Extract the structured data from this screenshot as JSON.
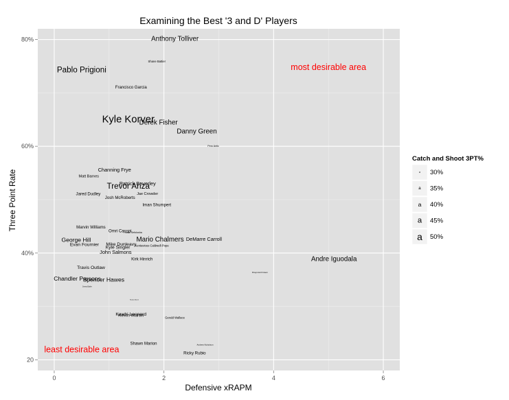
{
  "chart_data": {
    "type": "scatter",
    "title": "Examining the Best '3 and D' Players",
    "xlabel": "Defensive xRAPM",
    "ylabel": "Three Point Rate",
    "xlim": [
      -0.3,
      6.3
    ],
    "ylim": [
      18,
      82
    ],
    "x_ticks": [
      0,
      2,
      4,
      6
    ],
    "x_tick_labels": [
      "0",
      "2",
      "4",
      "6"
    ],
    "y_ticks": [
      20,
      40,
      60,
      80
    ],
    "y_tick_labels": [
      "20",
      "40%",
      "60%",
      "80%"
    ],
    "grid": true,
    "size_legend": {
      "title": "Catch and Shoot 3PT%",
      "placement": "right",
      "symbol": "a",
      "entries": [
        {
          "label": "30%",
          "value": 30
        },
        {
          "label": "35%",
          "value": 35
        },
        {
          "label": "40%",
          "value": 40
        },
        {
          "label": "45%",
          "value": 45
        },
        {
          "label": "50%",
          "value": 50
        }
      ]
    },
    "annotations": [
      {
        "text": "most desirable area",
        "x": 5.0,
        "y": 74.8,
        "color": "#ff0000"
      },
      {
        "text": "least desirable area",
        "x": 0.5,
        "y": 21.9,
        "color": "#ff0000"
      }
    ],
    "points": [
      {
        "name": "Anthony Tolliver",
        "x": 2.2,
        "y": 80.1,
        "size": 42
      },
      {
        "name": "Shane Battier",
        "x": 1.87,
        "y": 75.9,
        "size": 33
      },
      {
        "name": "Pablo Prigioni",
        "x": 0.5,
        "y": 74.3,
        "size": 45
      },
      {
        "name": "Francisco Garcia",
        "x": 1.4,
        "y": 71.0,
        "size": 36
      },
      {
        "name": "Kyle Korver",
        "x": 1.35,
        "y": 65.0,
        "size": 50
      },
      {
        "name": "Derek Fisher",
        "x": 1.9,
        "y": 64.4,
        "size": 42
      },
      {
        "name": "Danny Green",
        "x": 2.6,
        "y": 62.7,
        "size": 42
      },
      {
        "name": "Pero Antic",
        "x": 2.9,
        "y": 60.0,
        "size": 32
      },
      {
        "name": "Channing Frye",
        "x": 1.1,
        "y": 55.6,
        "size": 38
      },
      {
        "name": "Matt Barnes",
        "x": 0.63,
        "y": 54.3,
        "size": 35
      },
      {
        "name": "Patrick Beverley",
        "x": 1.52,
        "y": 53.0,
        "size": 38
      },
      {
        "name": "Trevor Ariza",
        "x": 1.35,
        "y": 52.5,
        "size": 45
      },
      {
        "name": "Jared Dudley",
        "x": 0.62,
        "y": 51.0,
        "size": 36
      },
      {
        "name": "Jae Crowder",
        "x": 1.7,
        "y": 51.0,
        "size": 35
      },
      {
        "name": "Josh McRoberts",
        "x": 1.2,
        "y": 50.3,
        "size": 36
      },
      {
        "name": "Iman Shumpert",
        "x": 1.87,
        "y": 49.0,
        "size": 36
      },
      {
        "name": "Marvin Williams",
        "x": 0.67,
        "y": 44.8,
        "size": 36
      },
      {
        "name": "Omri Casspi",
        "x": 1.2,
        "y": 44.1,
        "size": 36
      },
      {
        "name": "Thabo Sefolosha",
        "x": 1.43,
        "y": 43.8,
        "size": 32
      },
      {
        "name": "George Hill",
        "x": 0.4,
        "y": 42.5,
        "size": 40
      },
      {
        "name": "Mario Chalmers",
        "x": 1.93,
        "y": 42.5,
        "size": 42
      },
      {
        "name": "DeMarre Carroll",
        "x": 2.73,
        "y": 42.6,
        "size": 38
      },
      {
        "name": "Evan Fournier",
        "x": 0.55,
        "y": 41.5,
        "size": 37
      },
      {
        "name": "Mike Dunleavy",
        "x": 1.22,
        "y": 41.6,
        "size": 37
      },
      {
        "name": "Kentavious Caldwell-Pope",
        "x": 1.78,
        "y": 41.4,
        "size": 33
      },
      {
        "name": "Kyle Singler",
        "x": 1.16,
        "y": 41.0,
        "size": 37
      },
      {
        "name": "John Salmons",
        "x": 1.12,
        "y": 40.2,
        "size": 38
      },
      {
        "name": "Kirk Hinrich",
        "x": 1.6,
        "y": 38.8,
        "size": 36
      },
      {
        "name": "Andre Iguodala",
        "x": 5.1,
        "y": 38.8,
        "size": 42
      },
      {
        "name": "Travis Outlaw",
        "x": 0.67,
        "y": 37.2,
        "size": 37
      },
      {
        "name": "Draymond Green",
        "x": 3.75,
        "y": 36.4,
        "size": 31
      },
      {
        "name": "Chandler Parsons",
        "x": 0.42,
        "y": 35.2,
        "size": 40
      },
      {
        "name": "Spencer Hawes",
        "x": 0.9,
        "y": 35.0,
        "size": 40
      },
      {
        "name": "Jimmy Butler",
        "x": 0.6,
        "y": 33.7,
        "size": 30
      },
      {
        "name": "Nicolas Batum",
        "x": 1.46,
        "y": 31.2,
        "size": 29
      },
      {
        "name": "Kawhi Leonard",
        "x": 1.4,
        "y": 28.5,
        "size": 37
      },
      {
        "name": "Kevin Martin",
        "x": 1.4,
        "y": 28.3,
        "size": 37
      },
      {
        "name": "Gerald Wallace",
        "x": 2.2,
        "y": 27.9,
        "size": 33
      },
      {
        "name": "Shawn Marion",
        "x": 1.63,
        "y": 23.0,
        "size": 36
      },
      {
        "name": "Andrew Nicholson",
        "x": 2.75,
        "y": 22.8,
        "size": 31
      },
      {
        "name": "Ricky Rubio",
        "x": 2.56,
        "y": 21.2,
        "size": 36
      }
    ]
  }
}
